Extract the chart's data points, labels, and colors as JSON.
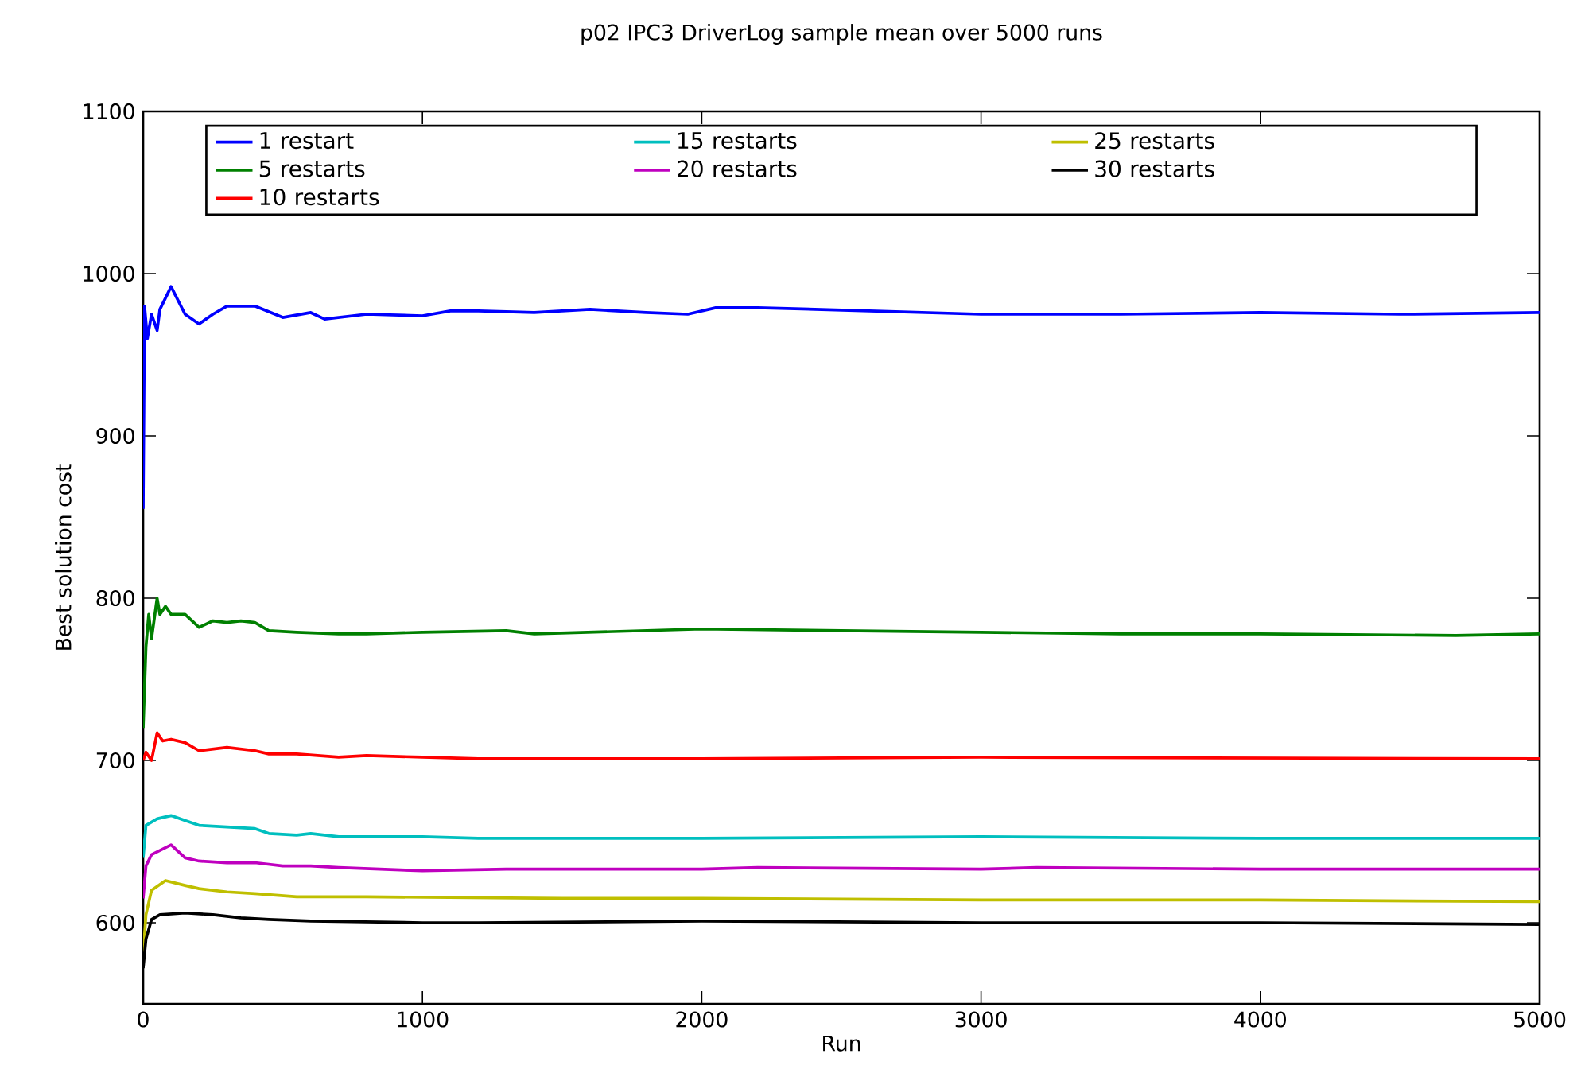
{
  "chart_data": {
    "type": "line",
    "title": "p02 IPC3 DriverLog sample mean over 5000 runs",
    "xlabel": "Run",
    "ylabel": "Best solution cost",
    "xlim": [
      0,
      5000
    ],
    "ylim": [
      550,
      1100
    ],
    "xticks": [
      0,
      1000,
      2000,
      3000,
      4000,
      5000
    ],
    "yticks": [
      600,
      700,
      800,
      900,
      1000,
      1100
    ],
    "grid": false,
    "legend": "top",
    "marker": "none",
    "line_style": "solid",
    "series": [
      {
        "name": "1 restart",
        "color": "#0000ff",
        "x": [
          0,
          5,
          15,
          30,
          50,
          60,
          100,
          150,
          200,
          250,
          300,
          350,
          400,
          500,
          600,
          650,
          800,
          1000,
          1100,
          1200,
          1400,
          1600,
          1800,
          1950,
          2050,
          2200,
          2600,
          3000,
          3500,
          4000,
          4500,
          5000
        ],
        "values": [
          855,
          980,
          960,
          975,
          965,
          978,
          992,
          975,
          969,
          975,
          980,
          980,
          980,
          973,
          976,
          972,
          975,
          974,
          977,
          977,
          976,
          978,
          976,
          975,
          979,
          979,
          977,
          975,
          975,
          976,
          975,
          976
        ]
      },
      {
        "name": "5 restarts",
        "color": "#008000",
        "x": [
          0,
          10,
          20,
          30,
          50,
          60,
          80,
          100,
          150,
          200,
          250,
          300,
          350,
          400,
          450,
          550,
          700,
          800,
          1000,
          1300,
          1400,
          2000,
          2500,
          3000,
          3500,
          4000,
          4700,
          5000
        ],
        "values": [
          720,
          770,
          790,
          775,
          800,
          790,
          795,
          790,
          790,
          782,
          786,
          785,
          786,
          785,
          780,
          779,
          778,
          778,
          779,
          780,
          778,
          781,
          780,
          779,
          778,
          778,
          777,
          778
        ]
      },
      {
        "name": "10 restarts",
        "color": "#ff0000",
        "x": [
          0,
          10,
          30,
          50,
          70,
          100,
          150,
          200,
          300,
          400,
          450,
          550,
          700,
          800,
          1000,
          1200,
          1600,
          2000,
          3000,
          5000
        ],
        "values": [
          700,
          705,
          700,
          717,
          712,
          713,
          711,
          706,
          708,
          706,
          704,
          704,
          702,
          703,
          702,
          701,
          701,
          701,
          702,
          701
        ]
      },
      {
        "name": "15 restarts",
        "color": "#00bfbf",
        "x": [
          0,
          10,
          50,
          100,
          150,
          200,
          300,
          400,
          450,
          550,
          600,
          700,
          1000,
          1200,
          2000,
          3000,
          4000,
          5000
        ],
        "values": [
          640,
          660,
          664,
          666,
          663,
          660,
          659,
          658,
          655,
          654,
          655,
          653,
          653,
          652,
          652,
          653,
          652,
          652
        ]
      },
      {
        "name": "20 restarts",
        "color": "#bf00bf",
        "x": [
          0,
          10,
          30,
          100,
          150,
          200,
          300,
          400,
          500,
          600,
          700,
          1000,
          1300,
          2000,
          2200,
          3000,
          3200,
          4000,
          5000
        ],
        "values": [
          615,
          635,
          642,
          648,
          640,
          638,
          637,
          637,
          635,
          635,
          634,
          632,
          633,
          633,
          634,
          633,
          634,
          633,
          633
        ]
      },
      {
        "name": "25 restarts",
        "color": "#bfbf00",
        "x": [
          0,
          10,
          30,
          80,
          150,
          200,
          300,
          400,
          550,
          800,
          1500,
          2000,
          3000,
          4000,
          5000
        ],
        "values": [
          580,
          605,
          620,
          626,
          623,
          621,
          619,
          618,
          616,
          616,
          615,
          615,
          614,
          614,
          613
        ]
      },
      {
        "name": "30 restarts",
        "color": "#000000",
        "x": [
          0,
          10,
          30,
          60,
          150,
          250,
          350,
          450,
          600,
          1000,
          1200,
          2000,
          3000,
          4000,
          5000
        ],
        "values": [
          572,
          590,
          602,
          605,
          606,
          605,
          603,
          602,
          601,
          600,
          600,
          601,
          600,
          600,
          599
        ]
      }
    ]
  }
}
